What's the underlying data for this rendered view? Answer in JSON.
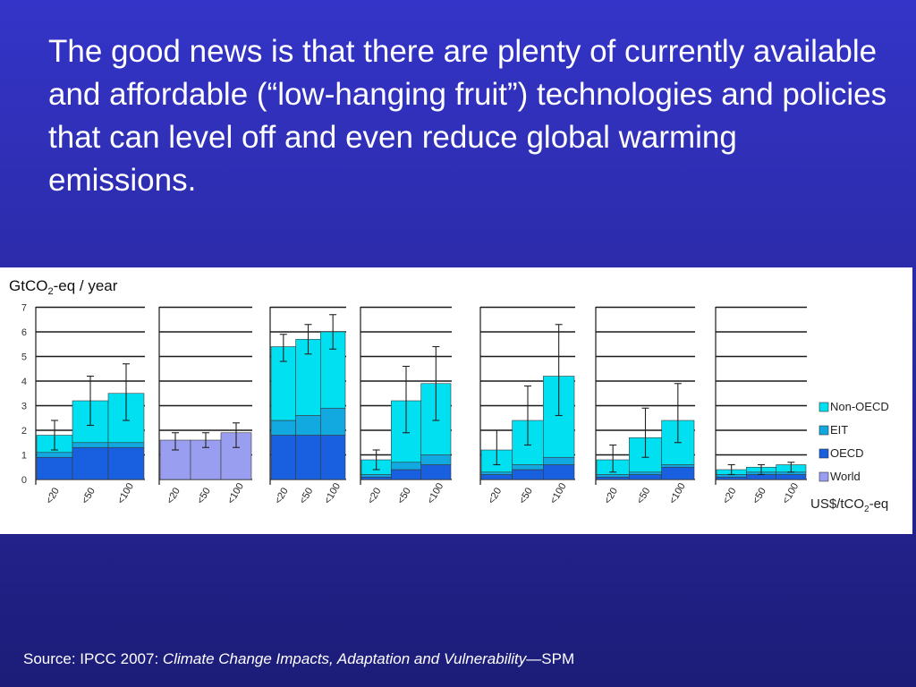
{
  "headline": "The good news is that there are plenty of currently available and affordable (“low-hanging fruit”) technologies and policies that can level off and even reduce global warming emissions.",
  "source": {
    "prefix": "Source: IPCC 2007: ",
    "title": "Climate Change Impacts, Adaptation and Vulnerability",
    "suffix": "—SPM"
  },
  "colors": {
    "non_oecd": "#00e0f0",
    "eit": "#12a8e0",
    "oecd": "#1860e0",
    "world": "#9a9ef0"
  },
  "chart_data": {
    "type": "bar",
    "stacked": true,
    "ylabel": "GtCO2-eq / year",
    "xlabel": "US$/tCO2-eq",
    "ylim": [
      0,
      7
    ],
    "yticks": [
      0,
      1,
      2,
      3,
      4,
      5,
      6,
      7
    ],
    "legend": {
      "position": "right",
      "entries": [
        "Non-OECD",
        "EIT",
        "OECD",
        "World"
      ]
    },
    "panels": [
      {
        "categories": [
          "<20",
          "<50",
          "<100"
        ],
        "series": [
          {
            "name": "OECD",
            "values": [
              0.9,
              1.3,
              1.3
            ]
          },
          {
            "name": "EIT",
            "values": [
              0.2,
              0.2,
              0.2
            ]
          },
          {
            "name": "Non-OECD",
            "values": [
              0.7,
              1.7,
              2.0
            ]
          }
        ],
        "totals": [
          1.8,
          3.2,
          3.5
        ],
        "error_low": [
          1.2,
          2.2,
          2.4
        ],
        "error_high": [
          2.4,
          4.2,
          4.7
        ]
      },
      {
        "categories": [
          "<20",
          "<50",
          "<100"
        ],
        "series": [
          {
            "name": "World",
            "values": [
              1.6,
              1.6,
              1.9
            ]
          }
        ],
        "totals": [
          1.6,
          1.6,
          1.9
        ],
        "error_low": [
          1.2,
          1.3,
          1.3
        ],
        "error_high": [
          1.9,
          1.9,
          2.3
        ]
      },
      {
        "categories": [
          "<20",
          "<50",
          "<100"
        ],
        "series": [
          {
            "name": "OECD",
            "values": [
              1.8,
              1.8,
              1.8
            ]
          },
          {
            "name": "EIT",
            "values": [
              0.6,
              0.8,
              1.1
            ]
          },
          {
            "name": "Non-OECD",
            "values": [
              3.0,
              3.1,
              3.1
            ]
          }
        ],
        "totals": [
          5.4,
          5.7,
          6.0
        ],
        "error_low": [
          4.8,
          5.1,
          5.3
        ],
        "error_high": [
          5.9,
          6.3,
          6.7
        ]
      },
      {
        "categories": [
          "<20",
          "<50",
          "<100"
        ],
        "series": [
          {
            "name": "OECD",
            "values": [
              0.1,
              0.4,
              0.6
            ]
          },
          {
            "name": "EIT",
            "values": [
              0.1,
              0.3,
              0.4
            ]
          },
          {
            "name": "Non-OECD",
            "values": [
              0.6,
              2.5,
              2.9
            ]
          }
        ],
        "totals": [
          0.8,
          3.2,
          3.9
        ],
        "error_low": [
          0.4,
          1.9,
          2.4
        ],
        "error_high": [
          1.2,
          4.6,
          5.4
        ]
      },
      {
        "categories": [
          "<20",
          "<50",
          "<100"
        ],
        "series": [
          {
            "name": "OECD",
            "values": [
              0.2,
              0.4,
              0.6
            ]
          },
          {
            "name": "EIT",
            "values": [
              0.1,
              0.2,
              0.3
            ]
          },
          {
            "name": "Non-OECD",
            "values": [
              0.9,
              1.8,
              3.3
            ]
          }
        ],
        "totals": [
          1.2,
          2.4,
          4.2
        ],
        "error_low": [
          0.6,
          1.4,
          2.6
        ],
        "error_high": [
          2.0,
          3.8,
          6.3
        ]
      },
      {
        "categories": [
          "<20",
          "<50",
          "<100"
        ],
        "series": [
          {
            "name": "OECD",
            "values": [
              0.1,
              0.2,
              0.5
            ]
          },
          {
            "name": "EIT",
            "values": [
              0.1,
              0.1,
              0.1
            ]
          },
          {
            "name": "Non-OECD",
            "values": [
              0.6,
              1.4,
              1.8
            ]
          }
        ],
        "totals": [
          0.8,
          1.7,
          2.4
        ],
        "error_low": [
          0.3,
          0.9,
          1.5
        ],
        "error_high": [
          1.4,
          2.9,
          3.9
        ]
      },
      {
        "categories": [
          "<20",
          "<50",
          "<100"
        ],
        "series": [
          {
            "name": "OECD",
            "values": [
              0.1,
              0.2,
              0.2
            ]
          },
          {
            "name": "EIT",
            "values": [
              0.1,
              0.1,
              0.1
            ]
          },
          {
            "name": "Non-OECD",
            "values": [
              0.2,
              0.2,
              0.3
            ]
          }
        ],
        "totals": [
          0.4,
          0.5,
          0.6
        ],
        "error_low": [
          0.2,
          0.2,
          0.3
        ],
        "error_high": [
          0.6,
          0.6,
          0.7
        ]
      }
    ]
  }
}
